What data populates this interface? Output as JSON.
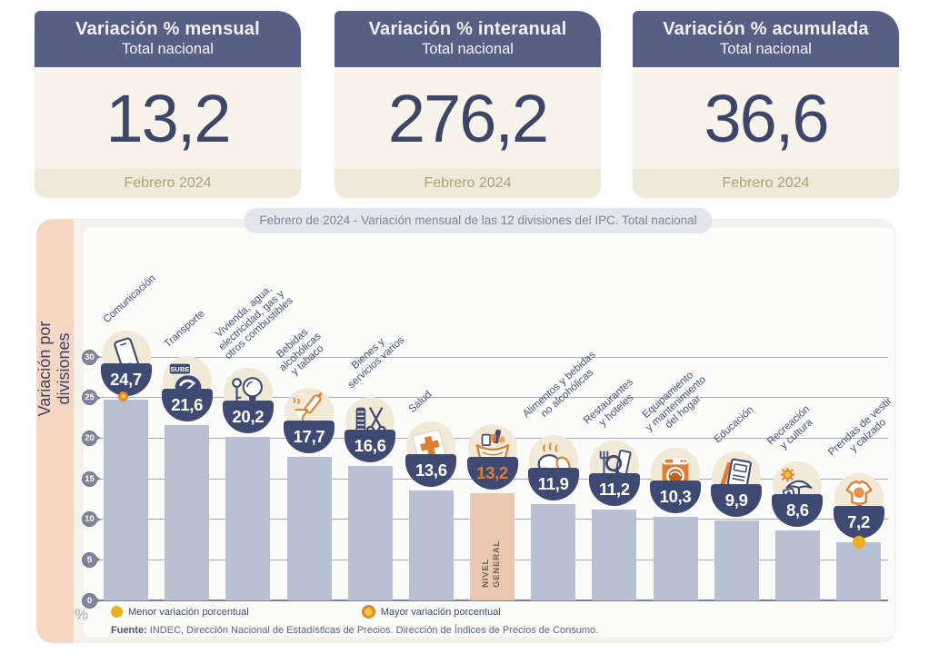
{
  "summary_cards": [
    {
      "title": "Variación % mensual",
      "subtitle": "Total nacional",
      "value": "13,2",
      "period": "Febrero 2024"
    },
    {
      "title": "Variación % interanual",
      "subtitle": "Total nacional",
      "value": "276,2",
      "period": "Febrero 2024"
    },
    {
      "title": "Variación % acumulada",
      "subtitle": "Total nacional",
      "value": "36,6",
      "period": "Febrero 2024"
    }
  ],
  "chart_data": {
    "type": "bar",
    "title": "Febrero de 2024 - Variación mensual de las 12 divisiones del IPC. Total nacional",
    "side_label": "Variación por divisiones",
    "xlabel": "",
    "ylabel": "Variación por divisiones",
    "unit": "%",
    "ylim": [
      0,
      30
    ],
    "yticks": [
      0,
      5,
      10,
      15,
      20,
      25,
      30
    ],
    "grid": true,
    "categories": [
      "Comunicación",
      "Transporte",
      "Vivienda, agua, electricidad, gas y otros combustibles",
      "Bebidas alcohólicas y tabaco",
      "Bienes y servicios varios",
      "Salud",
      "Nivel general",
      "Alimentos y bebidas no alcohólicas",
      "Restaurantes y hoteles",
      "Equipamiento y mantenimiento del hogar",
      "Educación",
      "Recreación y cultura",
      "Prendas de vestir y calzado"
    ],
    "label_lines": [
      [
        "Comunicación"
      ],
      [
        "Transporte"
      ],
      [
        "Vivienda, agua,",
        "electricidad, gas y",
        "otros combustibles"
      ],
      [
        "Bebidas",
        "alcohólicas",
        "y tabaco"
      ],
      [
        "Bienes y",
        "servicios varios"
      ],
      [
        "Salud"
      ],
      [
        "NIVEL",
        "GENERAL"
      ],
      [
        "Alimentos y bebidas",
        "no alcohólicas"
      ],
      [
        "Restaurantes",
        "y hoteles"
      ],
      [
        "Equipamiento",
        "y mantenimiento",
        "del hogar"
      ],
      [
        "Educación"
      ],
      [
        "Recreación",
        "y cultura"
      ],
      [
        "Prendas de vestir",
        "y calzado"
      ]
    ],
    "values": [
      24.7,
      21.6,
      20.2,
      17.7,
      16.6,
      13.6,
      13.2,
      11.9,
      11.2,
      10.3,
      9.9,
      8.6,
      7.2
    ],
    "value_labels": [
      "24,7",
      "21,6",
      "20,2",
      "17,7",
      "16,6",
      "13,6",
      "13,2",
      "11,9",
      "11,2",
      "10,3",
      "9,9",
      "8,6",
      "7,2"
    ],
    "highlight_index": 6,
    "max_index": 0,
    "min_index": 12,
    "icons": [
      "smartphone-icon",
      "transport-icon",
      "housing-icon",
      "drinks-tobacco-icon",
      "misc-goods-icon",
      "health-icon",
      "basket-icon",
      "food-icon",
      "restaurant-icon",
      "home-equipment-icon",
      "education-icon",
      "recreation-icon",
      "clothing-icon"
    ],
    "icon_texts": {
      "1": "SUBE"
    },
    "legend": [
      {
        "label": "Menor variación porcentual",
        "marker": "solid-yellow-dot"
      },
      {
        "label": "Mayor variación porcentual",
        "marker": "ringed-orange-dot"
      }
    ],
    "source_label": "Fuente:",
    "source_text": " INDEC, Dirección Nacional de Estadísticas de Precios. Dirección de Índices de Precios de Consumo.",
    "colors": {
      "bar": "#b7c1d2",
      "highlight_bar": "#e9c7b1",
      "bowl": "#3e4a72",
      "bowl_text": "#ffffff",
      "highlight_value_text": "#e0802f",
      "icon_circle": "#f3e9d7",
      "grid": "#a6abb8",
      "axis": "#7b8093",
      "label": "#44507a",
      "min_dot": "#eeae1e",
      "max_dot_ring": "#e0862e",
      "max_dot_fill": "#f5c33c",
      "navy": "#3e4a72",
      "orange": "#dd7e30"
    }
  }
}
